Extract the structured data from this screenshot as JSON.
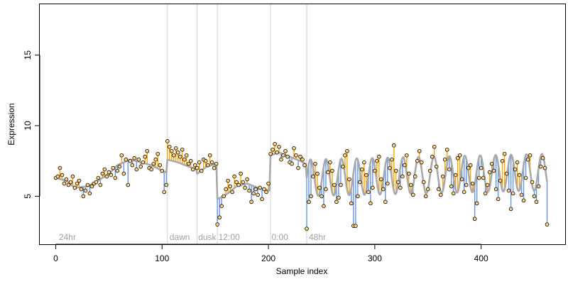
{
  "chart_data": {
    "type": "scatter",
    "xlabel": "Sample index",
    "ylabel": "Expression",
    "xlim": [
      -15,
      479
    ],
    "ylim": [
      1.6,
      18.6
    ],
    "x_ticks": [
      0,
      100,
      200,
      300,
      400
    ],
    "y_ticks": [
      5,
      10,
      15
    ],
    "x_tick_labels": [
      "0",
      "100",
      "200",
      "300",
      "400"
    ],
    "y_tick_labels": [
      "5",
      "10",
      "15"
    ],
    "grid": false,
    "phase_boundaries": [
      105,
      133,
      152,
      202,
      236
    ],
    "phase_labels": [
      {
        "x": 3,
        "label": "24hr"
      },
      {
        "x": 107,
        "label": "dawn"
      },
      {
        "x": 134,
        "label": "dusk"
      },
      {
        "x": 153,
        "label": "12:00"
      },
      {
        "x": 203,
        "label": "0:00"
      },
      {
        "x": 238,
        "label": "48hr"
      }
    ],
    "colors": {
      "above_fit": "#ffa500",
      "below_fit": "#6495ed",
      "fit_line": "#a9a9a9",
      "point_fill": "#ffd27f",
      "point_stroke": "#000000",
      "phase_line": "#d3d3d3"
    },
    "fit_knots": [
      [
        0,
        6.3
      ],
      [
        10,
        6.1
      ],
      [
        18,
        5.6
      ],
      [
        30,
        5.7
      ],
      [
        40,
        6.1
      ],
      [
        50,
        6.6
      ],
      [
        58,
        7.2
      ],
      [
        70,
        7.6
      ],
      [
        80,
        7.4
      ],
      [
        90,
        7.2
      ],
      [
        100,
        6.8
      ],
      [
        104,
        6.7
      ],
      [
        105,
        7.6
      ],
      [
        115,
        7.4
      ],
      [
        125,
        7.1
      ],
      [
        132,
        6.9
      ],
      [
        133,
        6.6
      ],
      [
        142,
        7.1
      ],
      [
        151,
        7.3
      ],
      [
        152,
        4.8
      ],
      [
        160,
        5.1
      ],
      [
        170,
        5.7
      ],
      [
        180,
        5.9
      ],
      [
        190,
        5.6
      ],
      [
        201,
        5.4
      ],
      [
        202,
        7.9
      ],
      [
        210,
        8.1
      ],
      [
        220,
        7.8
      ],
      [
        230,
        7.5
      ],
      [
        235,
        7.3
      ],
      [
        236,
        6.3
      ],
      [
        479,
        6.3
      ]
    ],
    "oscillation": {
      "start": 236,
      "amplitude": 1.3,
      "period": 14.5,
      "drift": 0.0018
    },
    "series": [
      {
        "x": [
          0,
          2,
          4,
          6,
          8,
          10,
          12,
          14,
          16,
          18,
          20,
          22,
          24,
          26,
          28,
          30,
          32,
          34,
          36,
          38,
          40,
          42,
          44,
          46,
          48,
          50,
          52,
          54,
          56,
          58,
          60,
          62,
          64,
          66,
          68,
          70,
          72,
          74,
          76,
          78,
          80,
          82,
          84,
          86,
          88,
          90,
          92,
          94,
          96,
          98,
          100,
          102,
          104,
          105,
          107,
          109,
          111,
          113,
          115,
          117,
          119,
          121,
          123,
          125,
          127,
          129,
          131,
          133,
          135,
          137,
          139,
          141,
          143,
          145,
          147,
          149,
          151,
          152,
          154,
          156,
          158,
          160,
          162,
          164,
          166,
          168,
          170,
          172,
          174,
          176,
          178,
          180,
          182,
          184,
          186,
          188,
          190,
          192,
          194,
          196,
          198,
          200,
          202,
          204,
          206,
          208,
          210,
          212,
          214,
          216,
          218,
          220,
          222,
          224,
          226,
          228,
          230,
          232,
          234,
          236,
          238,
          240,
          242,
          244,
          246,
          248,
          250,
          252,
          254,
          256,
          258,
          260,
          262,
          264,
          266,
          268,
          270,
          272,
          274,
          276,
          278,
          280,
          282,
          284,
          286,
          288,
          290,
          292,
          294,
          296,
          298,
          300,
          302,
          304,
          306,
          308,
          310,
          312,
          314,
          316,
          318,
          320,
          322,
          324,
          326,
          328,
          330,
          332,
          334,
          336,
          338,
          340,
          342,
          344,
          346,
          348,
          350,
          352,
          354,
          356,
          358,
          360,
          362,
          364,
          366,
          368,
          370,
          372,
          374,
          376,
          378,
          380,
          382,
          384,
          386,
          388,
          390,
          392,
          394,
          396,
          398,
          400,
          402,
          404,
          406,
          408,
          410,
          412,
          414,
          416,
          418,
          420,
          422,
          424,
          426,
          428,
          430,
          432,
          434,
          436,
          438,
          440,
          442,
          444,
          446,
          448,
          450,
          452,
          454,
          456,
          458,
          460,
          462
        ],
        "y": [
          6.3,
          6.4,
          7.0,
          6.5,
          5.9,
          6.2,
          5.8,
          6.0,
          6.4,
          5.6,
          5.9,
          6.1,
          5.5,
          5.0,
          5.4,
          5.8,
          5.2,
          5.7,
          5.9,
          6.0,
          6.3,
          5.8,
          6.6,
          6.9,
          6.4,
          6.7,
          6.5,
          7.0,
          6.3,
          6.8,
          7.1,
          7.9,
          6.6,
          7.6,
          5.8,
          7.5,
          7.2,
          7.7,
          6.9,
          7.6,
          7.1,
          7.4,
          7.8,
          8.2,
          7.0,
          6.9,
          7.3,
          7.6,
          8.0,
          7.2,
          6.8,
          5.3,
          5.8,
          8.9,
          8.5,
          8.2,
          7.9,
          8.4,
          8.1,
          7.8,
          8.3,
          7.6,
          7.9,
          7.3,
          7.5,
          6.9,
          7.2,
          7.0,
          7.4,
          6.8,
          7.6,
          7.5,
          7.2,
          7.9,
          7.4,
          7.0,
          7.3,
          3.0,
          3.5,
          4.3,
          5.0,
          5.5,
          6.1,
          5.7,
          5.3,
          6.4,
          6.0,
          5.8,
          6.6,
          6.0,
          5.6,
          6.2,
          5.4,
          4.6,
          5.2,
          5.5,
          5.1,
          5.6,
          4.8,
          5.5,
          5.3,
          5.9,
          8.0,
          8.3,
          8.7,
          8.1,
          8.5,
          7.6,
          7.9,
          8.2,
          7.8,
          7.4,
          7.3,
          8.4,
          7.9,
          7.0,
          7.8,
          7.6,
          7.2,
          2.7,
          4.6,
          5.0,
          6.4,
          7.3,
          6.6,
          5.6,
          5.0,
          4.3,
          5.5,
          6.7,
          7.4,
          6.8,
          5.8,
          4.6,
          4.9,
          5.8,
          7.1,
          7.9,
          8.2,
          6.2,
          4.5,
          2.9,
          2.9,
          5.0,
          6.0,
          6.9,
          7.4,
          6.5,
          5.3,
          4.5,
          5.6,
          6.8,
          7.5,
          7.8,
          6.2,
          5.5,
          4.6,
          5.9,
          7.0,
          7.6,
          8.6,
          6.8,
          6.0,
          5.6,
          6.4,
          7.2,
          7.9,
          6.6,
          5.8,
          5.1,
          6.4,
          7.5,
          8.2,
          7.4,
          6.0,
          5.0,
          5.5,
          6.8,
          7.8,
          8.5,
          7.1,
          5.5,
          5.1,
          6.4,
          7.6,
          8.3,
          6.9,
          5.7,
          5.2,
          6.5,
          7.7,
          7.9,
          6.2,
          5.3,
          5.8,
          7.0,
          7.2,
          5.9,
          3.4,
          4.5,
          6.3,
          7.0,
          6.3,
          5.2,
          5.8,
          6.7,
          7.3,
          6.8,
          5.5,
          4.8,
          6.1,
          7.5,
          8.0,
          6.6,
          5.4,
          4.1,
          5.2,
          6.9,
          7.4,
          6.5,
          5.1,
          4.7,
          6.3,
          7.6,
          7.9,
          6.0,
          5.0,
          4.6,
          5.7,
          7.1,
          7.7,
          7.0,
          3.0
        ]
      }
    ]
  }
}
